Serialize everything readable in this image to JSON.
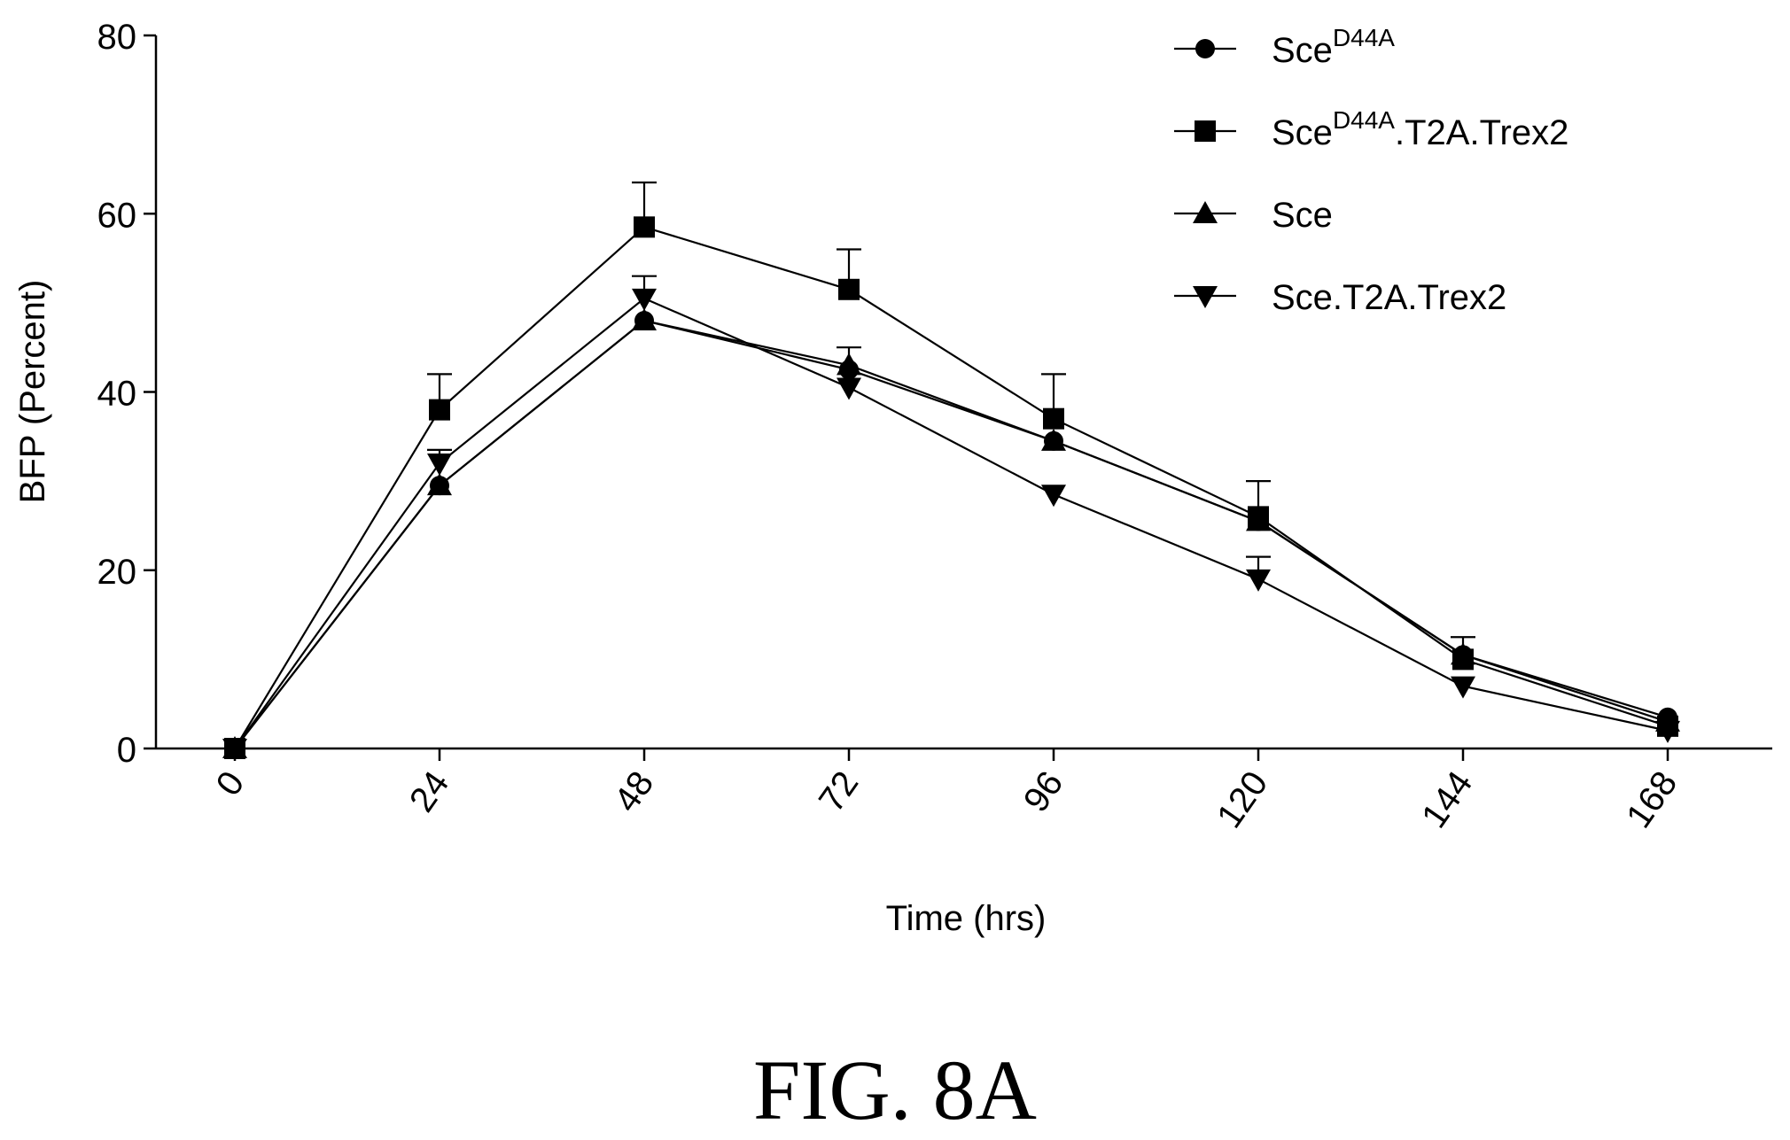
{
  "figure_label": "FIG. 8A",
  "chart_data": {
    "type": "line",
    "xlabel": "Time (hrs)",
    "ylabel": "BFP (Percent)",
    "x": [
      0,
      24,
      48,
      72,
      96,
      120,
      144,
      168
    ],
    "x_tick_labels": [
      "0",
      "24",
      "48",
      "72",
      "96",
      "120",
      "144",
      "168"
    ],
    "y_ticks": [
      0,
      20,
      40,
      60,
      80
    ],
    "y_tick_labels": [
      "0",
      "20",
      "40",
      "60",
      "80"
    ],
    "ylim": [
      0,
      80
    ],
    "grid": false,
    "legend_position": "top-right",
    "series": [
      {
        "name": "Sce",
        "name_superscript": "D44A",
        "name_suffix": "",
        "marker": "circle",
        "values": [
          0,
          29.5,
          48,
          42.5,
          34.5,
          25.5,
          10.5,
          3.5
        ],
        "error": [
          0,
          0,
          0,
          0,
          0,
          0,
          0,
          0
        ]
      },
      {
        "name": "Sce",
        "name_superscript": "D44A",
        "name_suffix": ".T2A.Trex2",
        "marker": "square",
        "values": [
          0,
          38,
          58.5,
          51.5,
          37,
          26,
          10,
          2.5
        ],
        "error": [
          0,
          4,
          5,
          4.5,
          5,
          4,
          2.5,
          0
        ]
      },
      {
        "name": "Sce",
        "name_superscript": "",
        "name_suffix": "",
        "marker": "triangle-up",
        "values": [
          0,
          29.5,
          48,
          43,
          34.5,
          25.5,
          10.5,
          3
        ],
        "error": [
          0,
          0,
          0,
          2,
          0,
          0,
          0,
          0
        ]
      },
      {
        "name": "Sce.T2A.Trex2",
        "name_superscript": "",
        "name_suffix": "",
        "marker": "triangle-down",
        "values": [
          0,
          32,
          50.5,
          40.5,
          28.5,
          19,
          7,
          2
        ],
        "error": [
          0,
          1.5,
          2.5,
          0,
          0,
          2.5,
          0,
          0
        ]
      }
    ]
  }
}
